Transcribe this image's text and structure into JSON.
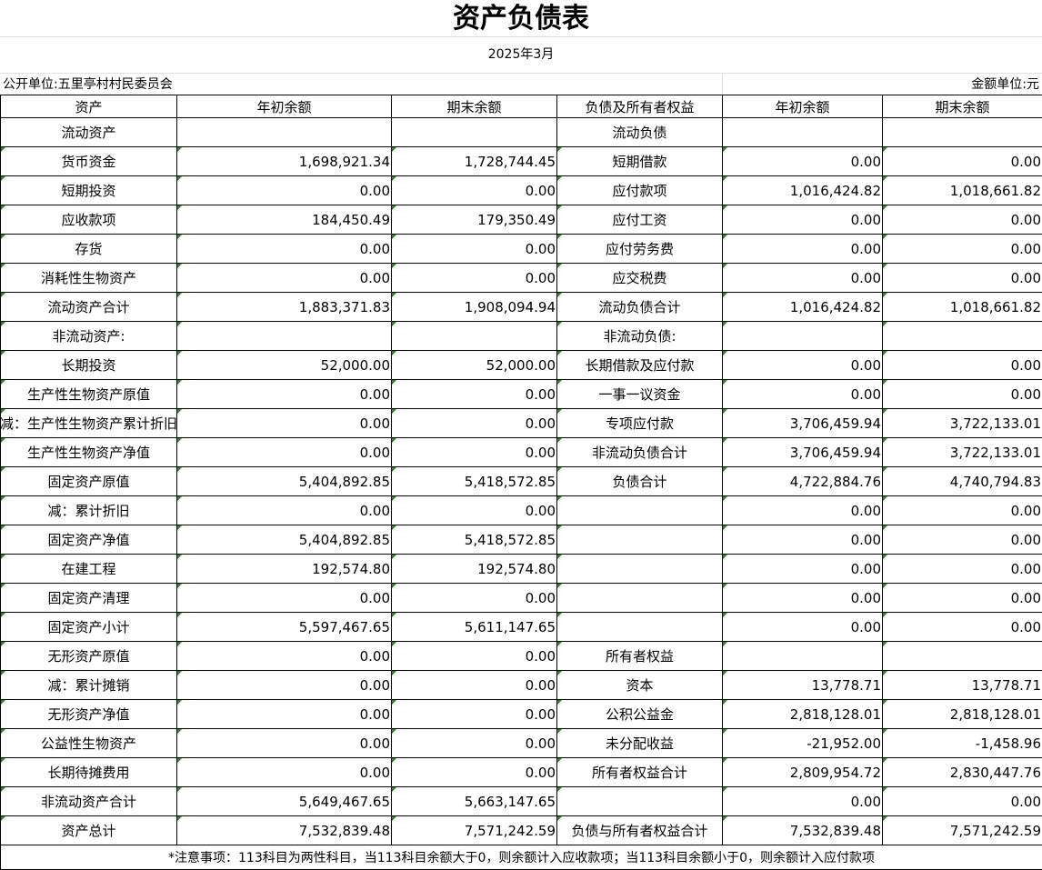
{
  "title": "资产负债表",
  "period": "2025年3月",
  "unit_left": "公开单位:五里亭村村民委员会",
  "unit_right": "金额单位:元",
  "headers": [
    "资产",
    "年初余额",
    "期末余额",
    "负债及所有者权益",
    "年初余额",
    "期末余额"
  ],
  "rows": [
    [
      "流动资产",
      "",
      "",
      "流动负债",
      "",
      ""
    ],
    [
      "货币资金",
      "1,698,921.34",
      "1,728,744.45",
      "短期借款",
      "0.00",
      "0.00"
    ],
    [
      "短期投资",
      "0.00",
      "0.00",
      "应付款项",
      "1,016,424.82",
      "1,018,661.82"
    ],
    [
      "应收款项",
      "184,450.49",
      "179,350.49",
      "应付工资",
      "0.00",
      "0.00"
    ],
    [
      "存货",
      "0.00",
      "0.00",
      "应付劳务费",
      "0.00",
      "0.00"
    ],
    [
      "消耗性生物资产",
      "0.00",
      "0.00",
      "应交税费",
      "0.00",
      "0.00"
    ],
    [
      "流动资产合计",
      "1,883,371.83",
      "1,908,094.94",
      "流动负债合计",
      "1,016,424.82",
      "1,018,661.82"
    ],
    [
      "非流动资产:",
      "",
      "",
      "非流动负债:",
      "",
      ""
    ],
    [
      "长期投资",
      "52,000.00",
      "52,000.00",
      "长期借款及应付款",
      "0.00",
      "0.00"
    ],
    [
      "生产性生物资产原值",
      "0.00",
      "0.00",
      "一事一议资金",
      "0.00",
      "0.00"
    ],
    [
      "减：生产性生物资产累计折旧",
      "0.00",
      "0.00",
      "专项应付款",
      "3,706,459.94",
      "3,722,133.01"
    ],
    [
      "生产性生物资产净值",
      "0.00",
      "0.00",
      "非流动负债合计",
      "3,706,459.94",
      "3,722,133.01"
    ],
    [
      "固定资产原值",
      "5,404,892.85",
      "5,418,572.85",
      "负债合计",
      "4,722,884.76",
      "4,740,794.83"
    ],
    [
      "减：累计折旧",
      "0.00",
      "0.00",
      "",
      "0.00",
      "0.00"
    ],
    [
      "固定资产净值",
      "5,404,892.85",
      "5,418,572.85",
      "",
      "0.00",
      "0.00"
    ],
    [
      "在建工程",
      "192,574.80",
      "192,574.80",
      "",
      "0.00",
      "0.00"
    ],
    [
      "固定资产清理",
      "0.00",
      "0.00",
      "",
      "0.00",
      "0.00"
    ],
    [
      "固定资产小计",
      "5,597,467.65",
      "5,611,147.65",
      "",
      "0.00",
      "0.00"
    ],
    [
      "无形资产原值",
      "0.00",
      "0.00",
      "所有者权益",
      "",
      ""
    ],
    [
      "减：累计摊销",
      "0.00",
      "0.00",
      "资本",
      "13,778.71",
      "13,778.71"
    ],
    [
      "无形资产净值",
      "0.00",
      "0.00",
      "公积公益金",
      "2,818,128.01",
      "2,818,128.01"
    ],
    [
      "公益性生物资产",
      "0.00",
      "0.00",
      "未分配收益",
      "-21,952.00",
      "-1,458.96"
    ],
    [
      "长期待摊费用",
      "0.00",
      "0.00",
      "所有者权益合计",
      "2,809,954.72",
      "2,830,447.76"
    ],
    [
      "非流动资产合计",
      "5,649,467.65",
      "5,663,147.65",
      "",
      "0.00",
      "0.00"
    ],
    [
      "资产总计",
      "7,532,839.48",
      "7,571,242.59",
      "负债与所有者权益合计",
      "7,532,839.48",
      "7,571,242.59"
    ]
  ],
  "note": "*注意事项：113科目为两性科目，当113科目余额大于0，则余额计入应收款项；当113科目余额小于0，则余额计入应付款项",
  "colors": {
    "marker": "#1a8a1a",
    "border": "#000000"
  }
}
